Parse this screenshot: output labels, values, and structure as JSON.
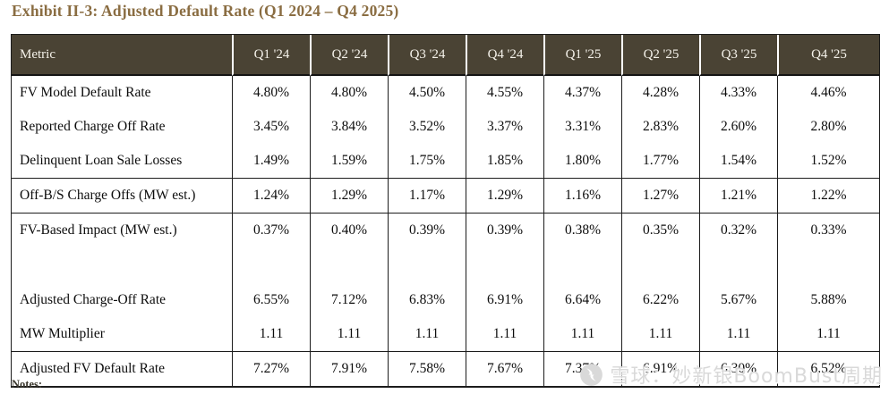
{
  "title": "Exhibit II-3: Adjusted Default Rate (Q1 2024 – Q4 2025)",
  "colors": {
    "title_text": "#8a6d42",
    "header_bg": "#4a4334",
    "header_text": "#f5f2ea",
    "grid_border": "#1c1c1c",
    "watermark": "#d9d9d9"
  },
  "table": {
    "columns": [
      "Metric",
      "Q1 '24",
      "Q2 '24",
      "Q3 '24",
      "Q4 '24",
      "Q1 '25",
      "Q2 '25",
      "Q3 '25",
      "Q4 '25"
    ],
    "rows": [
      {
        "label": "FV Model Default Rate",
        "values": [
          "4.80%",
          "4.80%",
          "4.50%",
          "4.55%",
          "4.37%",
          "4.28%",
          "4.33%",
          "4.46%"
        ],
        "rule_below": false,
        "blank": false
      },
      {
        "label": "Reported Charge Off Rate",
        "values": [
          "3.45%",
          "3.84%",
          "3.52%",
          "3.37%",
          "3.31%",
          "2.83%",
          "2.60%",
          "2.80%"
        ],
        "rule_below": false,
        "blank": false
      },
      {
        "label": "Delinquent Loan Sale Losses",
        "values": [
          "1.49%",
          "1.59%",
          "1.75%",
          "1.85%",
          "1.80%",
          "1.77%",
          "1.54%",
          "1.52%"
        ],
        "rule_below": true,
        "blank": false
      },
      {
        "label": "Off-B/S Charge Offs (MW est.)",
        "values": [
          "1.24%",
          "1.29%",
          "1.17%",
          "1.29%",
          "1.16%",
          "1.27%",
          "1.21%",
          "1.22%"
        ],
        "rule_below": true,
        "blank": false
      },
      {
        "label": "FV-Based Impact (MW est.)",
        "values": [
          "0.37%",
          "0.40%",
          "0.39%",
          "0.39%",
          "0.38%",
          "0.35%",
          "0.32%",
          "0.33%"
        ],
        "rule_below": false,
        "blank": false
      },
      {
        "label": "",
        "values": [
          "",
          "",
          "",
          "",
          "",
          "",
          "",
          ""
        ],
        "rule_below": false,
        "blank": true
      },
      {
        "label": "Adjusted Charge-Off Rate",
        "values": [
          "6.55%",
          "7.12%",
          "6.83%",
          "6.91%",
          "6.64%",
          "6.22%",
          "5.67%",
          "5.88%"
        ],
        "rule_below": false,
        "blank": false
      },
      {
        "label": "MW Multiplier",
        "values": [
          "1.11",
          "1.11",
          "1.11",
          "1.11",
          "1.11",
          "1.11",
          "1.11",
          "1.11"
        ],
        "rule_below": true,
        "blank": false
      },
      {
        "label": "Adjusted FV Default Rate",
        "values": [
          "7.27%",
          "7.91%",
          "7.58%",
          "7.67%",
          "7.37%",
          "6.91%",
          "6.30%",
          "6.52%"
        ],
        "rule_below": true,
        "blank": false
      }
    ]
  },
  "notes_label": "Notes:",
  "watermark": {
    "text": "雪球：妙新银BoomBust周期",
    "logo": "xueqiu-snowball-logo"
  },
  "chart_data": {
    "type": "table",
    "title": "Exhibit II-3: Adjusted Default Rate (Q1 2024 – Q4 2025)",
    "categories": [
      "Q1 '24",
      "Q2 '24",
      "Q3 '24",
      "Q4 '24",
      "Q1 '25",
      "Q2 '25",
      "Q3 '25",
      "Q4 '25"
    ],
    "series": [
      {
        "name": "FV Model Default Rate",
        "values": [
          4.8,
          4.8,
          4.5,
          4.55,
          4.37,
          4.28,
          4.33,
          4.46
        ],
        "unit": "%"
      },
      {
        "name": "Reported Charge Off Rate",
        "values": [
          3.45,
          3.84,
          3.52,
          3.37,
          3.31,
          2.83,
          2.6,
          2.8
        ],
        "unit": "%"
      },
      {
        "name": "Delinquent Loan Sale Losses",
        "values": [
          1.49,
          1.59,
          1.75,
          1.85,
          1.8,
          1.77,
          1.54,
          1.52
        ],
        "unit": "%"
      },
      {
        "name": "Off-B/S Charge Offs (MW est.)",
        "values": [
          1.24,
          1.29,
          1.17,
          1.29,
          1.16,
          1.27,
          1.21,
          1.22
        ],
        "unit": "%"
      },
      {
        "name": "FV-Based Impact (MW est.)",
        "values": [
          0.37,
          0.4,
          0.39,
          0.39,
          0.38,
          0.35,
          0.32,
          0.33
        ],
        "unit": "%"
      },
      {
        "name": "Adjusted Charge-Off Rate",
        "values": [
          6.55,
          7.12,
          6.83,
          6.91,
          6.64,
          6.22,
          5.67,
          5.88
        ],
        "unit": "%"
      },
      {
        "name": "MW Multiplier",
        "values": [
          1.11,
          1.11,
          1.11,
          1.11,
          1.11,
          1.11,
          1.11,
          1.11
        ],
        "unit": ""
      },
      {
        "name": "Adjusted FV Default Rate",
        "values": [
          7.27,
          7.91,
          7.58,
          7.67,
          7.37,
          6.91,
          6.3,
          6.52
        ],
        "unit": "%"
      }
    ]
  }
}
